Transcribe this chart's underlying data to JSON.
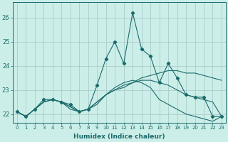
{
  "xlabel": "Humidex (Indice chaleur)",
  "background_color": "#cceee8",
  "grid_color": "#aacccc",
  "line_color": "#1a6b6b",
  "x_values": [
    0,
    1,
    2,
    3,
    4,
    5,
    6,
    7,
    8,
    9,
    10,
    11,
    12,
    13,
    14,
    15,
    16,
    17,
    18,
    19,
    20,
    21,
    22,
    23
  ],
  "series1": [
    22.1,
    21.9,
    22.2,
    22.6,
    22.6,
    22.5,
    22.4,
    22.1,
    22.2,
    23.2,
    24.3,
    25.0,
    24.1,
    26.2,
    24.7,
    24.4,
    23.3,
    24.1,
    23.5,
    22.8,
    22.7,
    22.7,
    21.9,
    21.9
  ],
  "series2": [
    22.1,
    21.9,
    22.2,
    22.5,
    22.6,
    22.5,
    22.3,
    22.1,
    22.2,
    22.5,
    22.8,
    23.0,
    23.1,
    23.3,
    23.5,
    23.6,
    23.7,
    23.8,
    23.8,
    23.7,
    23.7,
    23.6,
    23.5,
    23.4
  ],
  "series3": [
    22.1,
    21.9,
    22.2,
    22.5,
    22.6,
    22.5,
    22.3,
    22.1,
    22.2,
    22.5,
    22.8,
    23.0,
    23.2,
    23.3,
    23.4,
    23.4,
    23.3,
    23.2,
    23.0,
    22.8,
    22.7,
    22.6,
    22.5,
    21.9
  ],
  "series4": [
    22.1,
    21.9,
    22.2,
    22.5,
    22.6,
    22.5,
    22.2,
    22.1,
    22.2,
    22.4,
    22.8,
    23.1,
    23.3,
    23.4,
    23.3,
    23.1,
    22.6,
    22.4,
    22.2,
    22.0,
    21.9,
    21.8,
    21.7,
    21.9
  ],
  "ylim": [
    21.65,
    26.65
  ],
  "yticks": [
    22,
    23,
    24,
    25,
    26
  ],
  "xticks": [
    0,
    1,
    2,
    3,
    4,
    5,
    6,
    7,
    8,
    9,
    10,
    11,
    12,
    13,
    14,
    15,
    16,
    17,
    18,
    19,
    20,
    21,
    22,
    23
  ]
}
